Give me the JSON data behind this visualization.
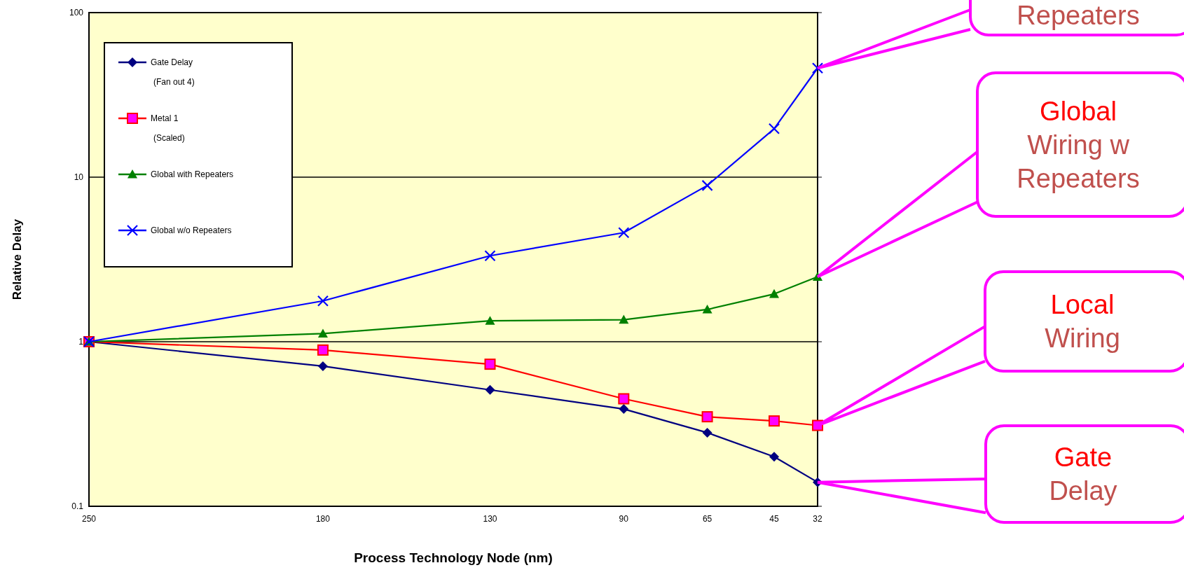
{
  "chart_data": {
    "type": "line",
    "xlabel": "Process Technology Node (nm)",
    "ylabel": "Relative Delay",
    "x": [
      250,
      180,
      130,
      90,
      65,
      45,
      32
    ],
    "xlim": [
      250,
      32
    ],
    "xticks": [
      250,
      180,
      130,
      90,
      65,
      45,
      32
    ],
    "ylim": [
      0.1,
      100
    ],
    "yticks": [
      0.1,
      1,
      10,
      100
    ],
    "log": "y",
    "grid": "y",
    "legend": "top left",
    "series": [
      {
        "name": "Gate Delay\n(Fan out 4)",
        "color": "#000080",
        "marker": "diamond",
        "values": [
          1,
          0.71,
          0.51,
          0.39,
          0.28,
          0.2,
          0.14
        ]
      },
      {
        "name": "Metal 1\n(Scaled)",
        "color": "#ff0000",
        "marker": "square",
        "values": [
          1,
          0.89,
          0.73,
          0.45,
          0.35,
          0.33,
          0.31
        ]
      },
      {
        "name": "Global with Repeaters",
        "color": "#008000",
        "marker": "triangle",
        "values": [
          1,
          1.12,
          1.34,
          1.36,
          1.57,
          1.95,
          2.48
        ]
      },
      {
        "name": "Global w/o Repeaters",
        "color": "#0000ff",
        "marker": "cross",
        "values": [
          1,
          1.77,
          3.33,
          4.6,
          8.9,
          19.7,
          46
        ]
      }
    ],
    "annotations": [
      "Repeaters",
      "Global\nWiring w\nRepeaters",
      "Local\nWiring",
      "Gate\nDelay"
    ]
  }
}
